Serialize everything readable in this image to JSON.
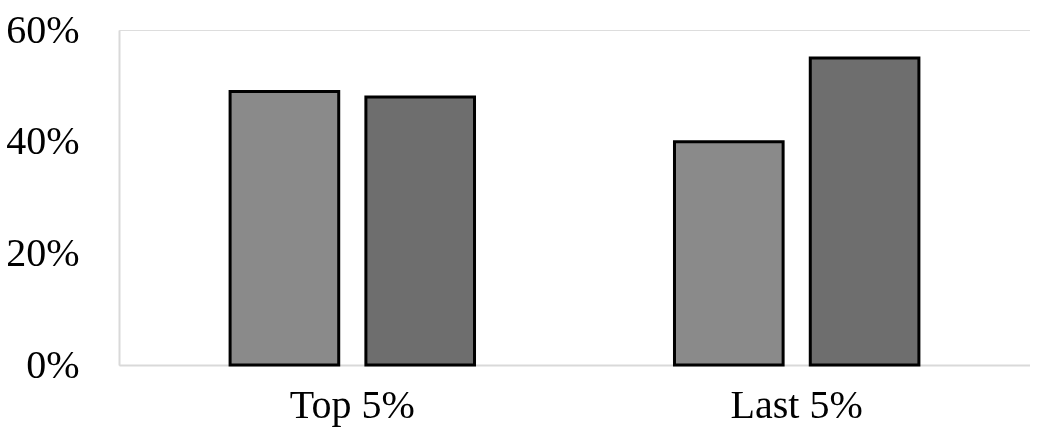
{
  "chart_data": {
    "type": "bar",
    "categories": [
      "Top 5%",
      "Last 5%"
    ],
    "series": [
      {
        "color": "#8a8a8a",
        "values": [
          49,
          40
        ]
      },
      {
        "color": "#6e6e6e",
        "values": [
          48,
          55
        ]
      }
    ],
    "ylim": [
      0,
      60
    ],
    "yticks": [
      {
        "value": 0,
        "label": "0%"
      },
      {
        "value": 20,
        "label": "20%"
      },
      {
        "value": 40,
        "label": "40%"
      },
      {
        "value": 60,
        "label": "60%"
      }
    ],
    "grid": false,
    "legend": false
  }
}
